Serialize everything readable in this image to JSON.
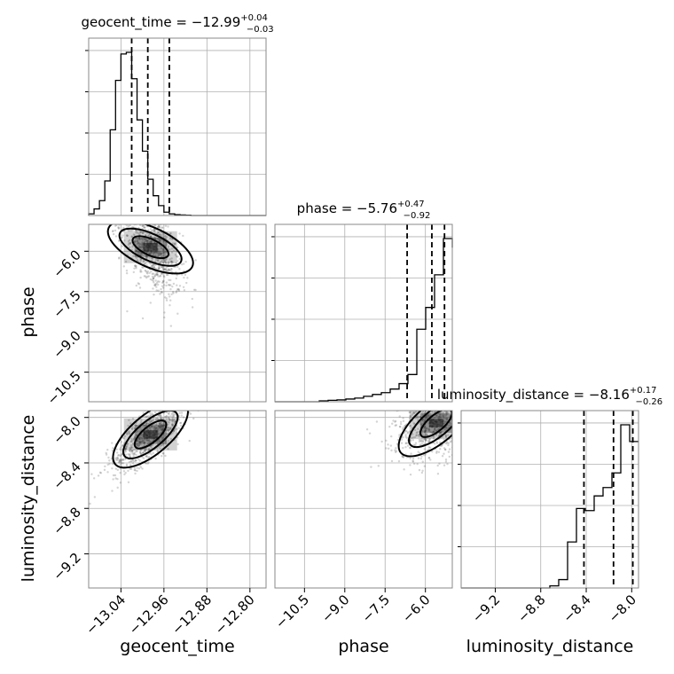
{
  "chart_data": {
    "type": "corner",
    "parameters": [
      "geocent_time",
      "phase",
      "luminosity_distance"
    ],
    "titles": {
      "geocent_time": {
        "name": "geocent_time",
        "median": "−12.99",
        "plus": "+0.04",
        "minus": "−0.03"
      },
      "phase": {
        "name": "phase",
        "median": "−5.76",
        "plus": "+0.47",
        "minus": "−0.92"
      },
      "luminosity_distance": {
        "name": "luminosity_distance",
        "median": "−8.16",
        "plus": "+0.17",
        "minus": "−0.26"
      }
    },
    "ranges": {
      "geocent_time": [
        -13.1,
        -12.77
      ],
      "phase": [
        -11.6,
        -5.0
      ],
      "luminosity_distance": [
        -9.5,
        -7.94
      ]
    },
    "ticks": {
      "geocent_time": {
        "values": [
          -13.04,
          -12.96,
          -12.88,
          -12.8
        ],
        "labels": [
          "−13.04",
          "−12.96",
          "−12.88",
          "−12.80"
        ]
      },
      "phase": {
        "values": [
          -10.5,
          -9.0,
          -7.5,
          -6.0
        ],
        "labels": [
          "−10.5",
          "−9.0",
          "−7.5",
          "−6.0"
        ]
      },
      "luminosity_distance": {
        "values": [
          -9.2,
          -8.8,
          -8.4,
          -8.0
        ],
        "labels": [
          "−9.2",
          "−8.8",
          "−8.4",
          "−8.0"
        ]
      }
    },
    "quantiles": {
      "geocent_time": [
        -13.02,
        -12.99,
        -12.95
      ],
      "phase": [
        -6.68,
        -5.76,
        -5.29
      ],
      "luminosity_distance": [
        -8.42,
        -8.16,
        -7.99
      ]
    },
    "histograms": {
      "geocent_time": {
        "edges_start": -13.1,
        "bin_width": 0.01,
        "counts": [
          1,
          4,
          9,
          21,
          52,
          82,
          98,
          99,
          83,
          58,
          39,
          22,
          12,
          6,
          2,
          1,
          0.5,
          0.3,
          0.2,
          0,
          0,
          0,
          0,
          0,
          0,
          0,
          0,
          0,
          0,
          0,
          0,
          0,
          0
        ]
      },
      "phase": {
        "edges_start": -11.6,
        "bin_width": 0.33,
        "counts": [
          0,
          0,
          0,
          0,
          0,
          0.5,
          0.8,
          1,
          1.5,
          2,
          3,
          4,
          5,
          7,
          10,
          15,
          40,
          52,
          70,
          90,
          85
        ]
      },
      "luminosity_distance": {
        "edges_start": -9.5,
        "bin_width": 0.078,
        "counts": [
          0,
          0,
          0,
          0,
          0,
          0,
          0,
          0,
          0,
          0,
          1,
          4,
          22,
          38,
          37,
          44,
          48,
          55,
          78,
          70
        ]
      }
    },
    "xlabels": [
      "geocent_time",
      "phase",
      "luminosity_distance"
    ],
    "ylabels": [
      "phase",
      "luminosity_distance"
    ],
    "grid": true
  }
}
